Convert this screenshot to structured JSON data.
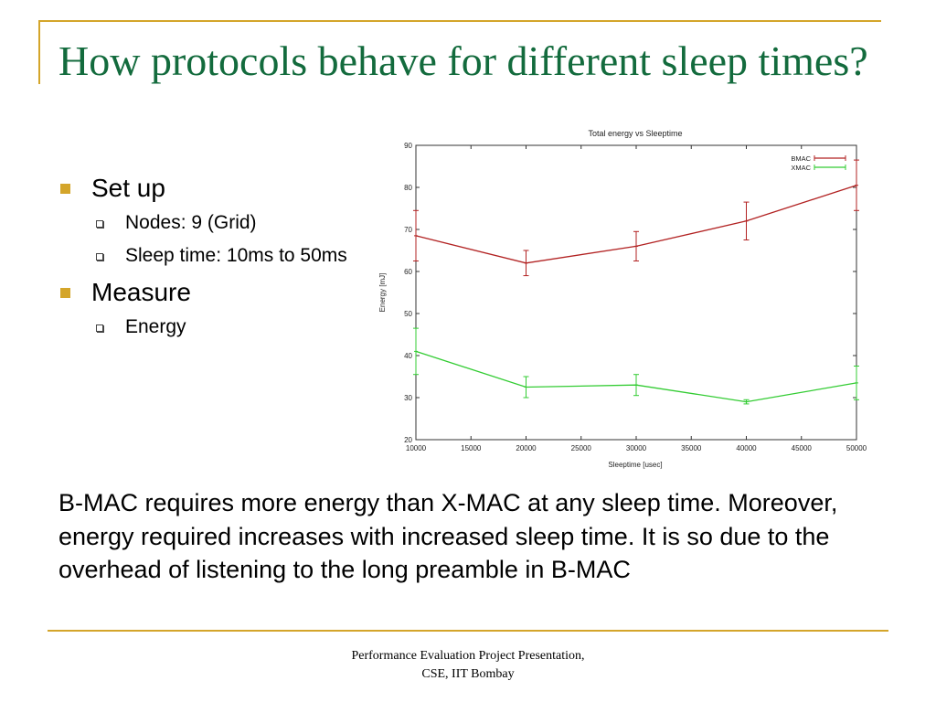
{
  "slide": {
    "title": "How protocols behave for different sleep times?",
    "bullets": [
      {
        "text": "Set up",
        "sub": [
          "Nodes: 9 (Grid)",
          "Sleep time: 10ms to 50ms"
        ]
      },
      {
        "text": "Measure",
        "sub": [
          "Energy"
        ]
      }
    ],
    "body": "B-MAC requires more energy than X-MAC at any sleep time. Moreover, energy required increases with increased sleep time. It is so due to the overhead of listening to the long preamble in B-MAC",
    "footer_line1": "Performance Evaluation Project Presentation,",
    "footer_line2": "CSE, IIT Bombay",
    "accent_color": "#d4a52a",
    "title_color": "#136b3d"
  },
  "chart_data": {
    "type": "line",
    "title": "Total energy vs Sleeptime",
    "xlabel": "Sleeptime [usec]",
    "ylabel": "Energy [mJ]",
    "xlim": [
      10000,
      50000
    ],
    "ylim": [
      20,
      90
    ],
    "xticks": [
      10000,
      15000,
      20000,
      25000,
      30000,
      35000,
      40000,
      45000,
      50000
    ],
    "yticks": [
      20,
      30,
      40,
      50,
      60,
      70,
      80,
      90
    ],
    "x": [
      10000,
      20000,
      30000,
      40000,
      50000
    ],
    "series": [
      {
        "name": "BMAC",
        "color": "#b22222",
        "values": [
          68.5,
          62,
          66,
          72,
          80.5
        ],
        "err": [
          6,
          3,
          3.5,
          4.5,
          6
        ]
      },
      {
        "name": "XMAC",
        "color": "#33cc33",
        "values": [
          41,
          32.5,
          33,
          29,
          33.5
        ],
        "err": [
          5.5,
          2.5,
          2.5,
          0.5,
          4
        ]
      }
    ],
    "legend": "top-right",
    "grid": false
  }
}
